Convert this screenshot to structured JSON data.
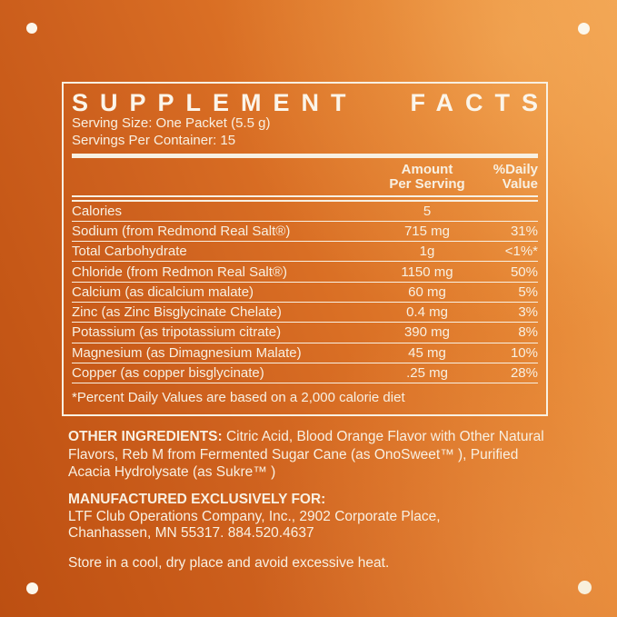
{
  "colors": {
    "background_dark_orange": "#BC4F12",
    "background_light_orange": "#F0A04E",
    "label_cream": "#F8F0E2"
  },
  "label": {
    "title": {
      "left": "SUPPLEMENT",
      "right": "FACTS"
    },
    "serving_size": "Serving Size: One Packet (5.5 g)",
    "servings_per_container": "Servings Per Container: 15",
    "header": {
      "amount_line1": "Amount",
      "amount_line2": "Per Serving",
      "dv_line1": "%Daily",
      "dv_line2": "Value"
    },
    "rows": [
      {
        "name": "Calories",
        "amount": "5",
        "dv": ""
      },
      {
        "name": "Sodium (from Redmond Real Salt®)",
        "amount": "715 mg",
        "dv": "31%"
      },
      {
        "name": "Total Carbohydrate",
        "amount": "1g",
        "dv": "<1%*"
      },
      {
        "name": "Chloride (from Redmon Real Salt®)",
        "amount": "1150 mg",
        "dv": "50%"
      },
      {
        "name": "Calcium (as dicalcium malate)",
        "amount": "60 mg",
        "dv": "5%"
      },
      {
        "name": "Zinc (as Zinc Bisglycinate Chelate)",
        "amount": "0.4 mg",
        "dv": "3%"
      },
      {
        "name": "Potassium (as tripotassium citrate)",
        "amount": "390 mg",
        "dv": "8%"
      },
      {
        "name": "Magnesium (as Dimagnesium Malate)",
        "amount": "45 mg",
        "dv": "10%"
      },
      {
        "name": "Copper (as copper bisglycinate)",
        "amount": ".25 mg",
        "dv": "28%"
      }
    ],
    "footnote": "*Percent Daily Values are based on a 2,000 calorie diet"
  },
  "other_ingredients": {
    "label": "OTHER INGREDIENTS:",
    "text": "  Citric Acid, Blood Orange Flavor with Other Natural Flavors, Reb M from Fermented Sugar Cane (as OnoSweet™ ), Purified Acacia Hydrolysate (as Sukre™ )"
  },
  "manufactured": {
    "label": "MANUFACTURED EXCLUSIVELY FOR:",
    "address_line1": "LTF Club Operations Company, Inc., 2902 Corporate Place,",
    "address_line2": "Chanhassen, MN 55317. 884.520.4637"
  },
  "storage": "Store in a cool, dry place and avoid excessive heat."
}
